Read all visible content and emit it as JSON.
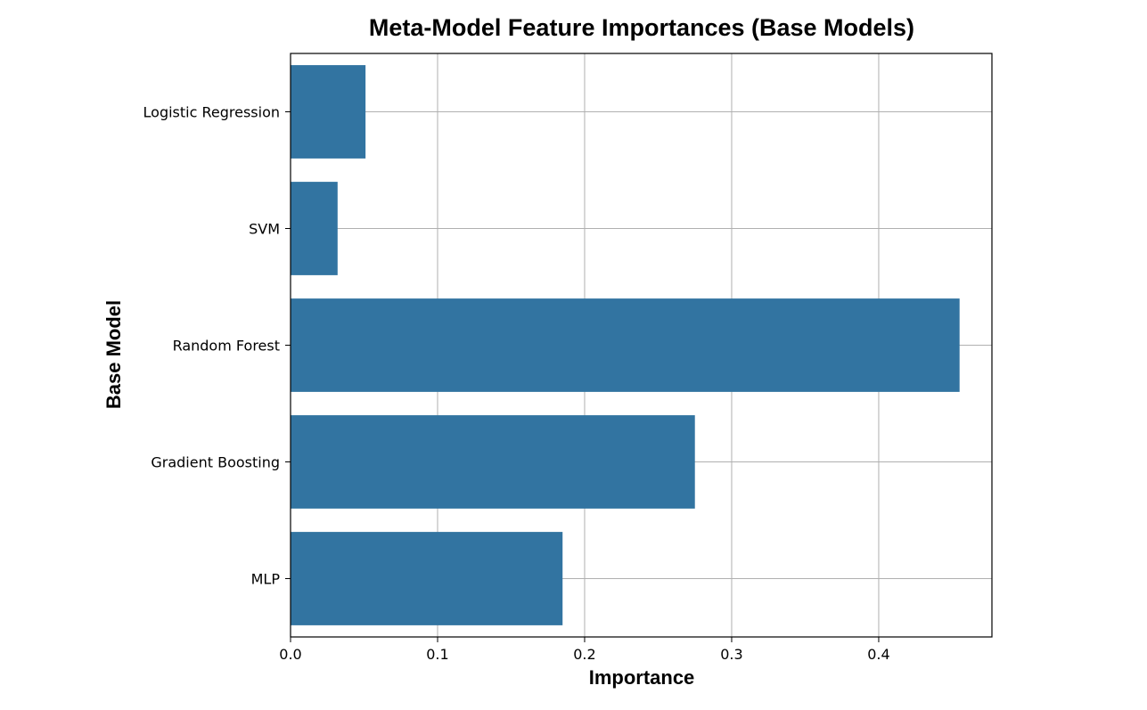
{
  "chart_data": {
    "type": "bar",
    "orientation": "horizontal",
    "title": "Meta-Model Feature Importances (Base Models)",
    "xlabel": "Importance",
    "ylabel": "Base Model",
    "categories": [
      "Logistic Regression",
      "SVM",
      "Random Forest",
      "Gradient Boosting",
      "MLP"
    ],
    "values": [
      0.051,
      0.032,
      0.455,
      0.275,
      0.185
    ],
    "xlim": [
      0,
      0.477
    ],
    "xticks": [
      "0.0",
      "0.1",
      "0.2",
      "0.3",
      "0.4"
    ],
    "grid": true,
    "bar_color": "#3274a1",
    "grid_color": "#b0b0b0"
  }
}
